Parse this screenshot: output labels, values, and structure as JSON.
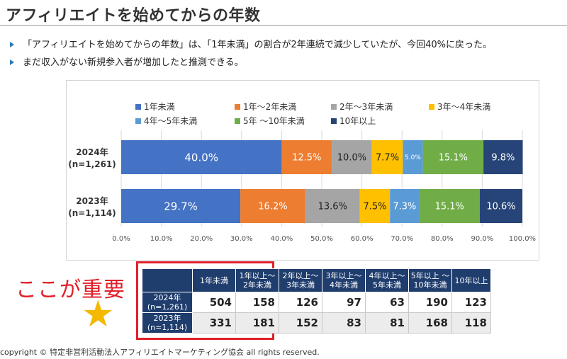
{
  "page": {
    "title": "アフィリエイトを始めてからの年数",
    "bullets": [
      "「アフィリエイトを始めてからの年数」は、「1年未満」の割合が2年連続で減少していたが、今回40%に戻った。",
      "まだ収入がない新規参入者が増加したと推測できる。"
    ],
    "callout": "ここが重要",
    "copyright": "copyright © 特定非営利活動法人アフィリエイトマーケティング協会 all rights reserved."
  },
  "chart_data": {
    "type": "bar",
    "orientation": "horizontal",
    "stacked": "percent",
    "categories": [
      {
        "year": "2024年",
        "n": "(n=1,261)"
      },
      {
        "year": "2023年",
        "n": "(n=1,114)"
      }
    ],
    "series": [
      {
        "name": "1年未満",
        "color": "#4472c4",
        "values": [
          40.0,
          29.7
        ],
        "labels": [
          "40.0%",
          "29.7%"
        ]
      },
      {
        "name": "1年～2年未満",
        "color": "#ed7d31",
        "values": [
          12.5,
          16.2
        ],
        "labels": [
          "12.5%",
          "16.2%"
        ]
      },
      {
        "name": "2年～3年未満",
        "color": "#a5a5a5",
        "values": [
          10.0,
          13.6
        ],
        "labels": [
          "10.0%",
          "13.6%"
        ]
      },
      {
        "name": "3年～4年未満",
        "color": "#ffc000",
        "values": [
          7.7,
          7.5
        ],
        "labels": [
          "7.7%",
          "7.5%"
        ]
      },
      {
        "name": "4年～5年未満",
        "color": "#5b9bd5",
        "values": [
          5.0,
          7.3
        ],
        "labels": [
          "5.0%",
          "7.3%"
        ]
      },
      {
        "name": "5年 ～10年未満",
        "color": "#70ad47",
        "values": [
          15.1,
          15.1
        ],
        "labels": [
          "15.1%",
          "15.1%"
        ]
      },
      {
        "name": "10年以上",
        "color": "#264478",
        "values": [
          9.8,
          10.6
        ],
        "labels": [
          "9.8%",
          "10.6%"
        ]
      }
    ],
    "xlim": [
      0,
      100
    ],
    "xticks": [
      "0.0%",
      "10.0%",
      "20.0%",
      "30.0%",
      "40.0%",
      "50.0%",
      "60.0%",
      "70.0%",
      "80.0%",
      "90.0%",
      "100.0%"
    ],
    "grid": true,
    "legend": "top"
  },
  "table": {
    "headers": [
      "1年未満",
      "1年以上～\n2年未満",
      "2年以上～\n3年未満",
      "3年以上～\n4年未満",
      "4年以上～\n5年未満",
      "5年以上 ～\n10年未満",
      "10年以上"
    ],
    "rows": [
      {
        "label": "2024年\n(n=1,261)",
        "values": [
          "504",
          "158",
          "126",
          "97",
          "63",
          "190",
          "123"
        ]
      },
      {
        "label": "2023年\n(n=1,114)",
        "values": [
          "331",
          "181",
          "152",
          "83",
          "81",
          "168",
          "118"
        ]
      }
    ]
  }
}
